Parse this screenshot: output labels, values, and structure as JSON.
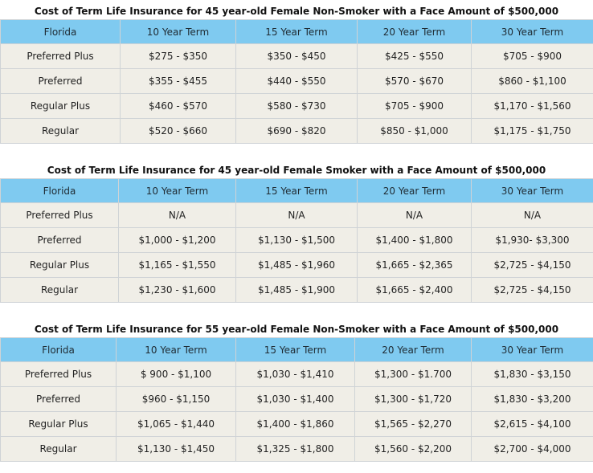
{
  "tables": [
    {
      "caption": "Cost of Term Life Insurance for 45 year-old Female Non-Smoker with a Face Amount of $500,000",
      "headers": [
        "Florida",
        "10 Year Term",
        "15 Year Term",
        "20 Year Term",
        "30 Year Term"
      ],
      "rows": [
        [
          "Preferred Plus",
          "$275 - $350",
          "$350 - $450",
          "$425 - $550",
          "$705 - $900"
        ],
        [
          "Preferred",
          "$355 - $455",
          "$440 - $550",
          "$570 - $670",
          "$860 - $1,100"
        ],
        [
          "Regular Plus",
          "$460 - $570",
          "$580 - $730",
          "$705 - $900",
          "$1,170 - $1,560"
        ],
        [
          "Regular",
          "$520 - $660",
          "$690 - $820",
          "$850 - $1,000",
          "$1,175 - $1,750"
        ]
      ]
    },
    {
      "caption": "Cost of Term Life Insurance for 45 year-old Female Smoker with a Face Amount of $500,000",
      "headers": [
        "Florida",
        "10 Year Term",
        "15 Year Term",
        "20 Year Term",
        "30 Year Term"
      ],
      "rows": [
        [
          "Preferred Plus",
          "N/A",
          "N/A",
          "N/A",
          "N/A"
        ],
        [
          "Preferred",
          "$1,000 - $1,200",
          "$1,130 - $1,500",
          "$1,400 - $1,800",
          "$1,930- $3,300"
        ],
        [
          "Regular Plus",
          "$1,165 - $1,550",
          "$1,485 - $1,960",
          "$1,665 - $2,365",
          "$2,725 - $4,150"
        ],
        [
          "Regular",
          "$1,230 - $1,600",
          "$1,485 - $1,900",
          "$1,665 - $2,400",
          "$2,725 - $4,150"
        ]
      ]
    },
    {
      "caption": "Cost of Term Life Insurance for 55 year-old Female Non-Smoker with a Face Amount of $500,000",
      "headers": [
        "Florida",
        "10 Year Term",
        "15 Year Term",
        "20 Year Term",
        "30 Year Term"
      ],
      "rows": [
        [
          "Preferred Plus",
          "$ 900 - $1,100",
          "$1,030 - $1,410",
          "$1,300 - $1.700",
          "$1,830 - $3,150"
        ],
        [
          "Preferred",
          "$960 - $1,150",
          "$1,030 - $1,400",
          "$1,300 - $1,720",
          "$1,830 - $3,200"
        ],
        [
          "Regular Plus",
          "$1,065 - $1,440",
          "$1,400 - $1,860",
          "$1,565 - $2,270",
          "$2,615 - $4,100"
        ],
        [
          "Regular",
          "$1,130 - $1,450",
          "$1,325 - $1,800",
          "$1,560 - $2,200",
          "$2,700 - $4,000"
        ]
      ]
    }
  ]
}
